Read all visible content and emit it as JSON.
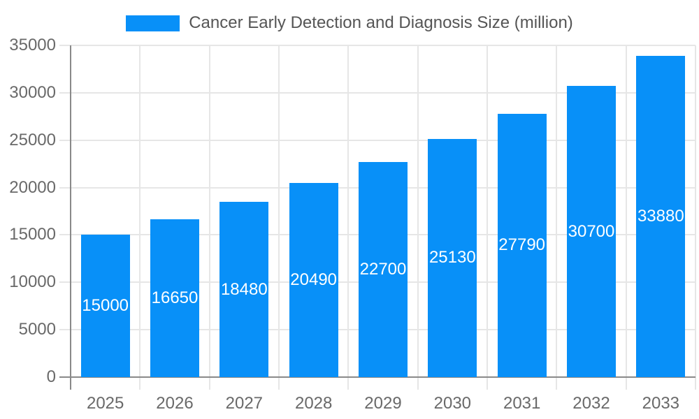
{
  "legend": {
    "label": "Cancer Early Detection and Diagnosis Size (million)"
  },
  "chart_data": {
    "type": "bar",
    "title": "Cancer Early Detection and Diagnosis Size (million)",
    "categories": [
      "2025",
      "2026",
      "2027",
      "2028",
      "2029",
      "2030",
      "2031",
      "2032",
      "2033"
    ],
    "values": [
      15000,
      16650,
      18480,
      20490,
      22700,
      25130,
      27790,
      30700,
      33880
    ],
    "xlabel": "",
    "ylabel": "",
    "ylim": [
      0,
      35000
    ],
    "ytick_step": 5000,
    "grid": true,
    "legend_position": "top-center",
    "colors": {
      "bar": "#0890F8",
      "grid": "#E6E6E6",
      "axis": "#898989",
      "axis_text": "#696969",
      "legend_text": "#555555",
      "value_label": "#FFFFFF",
      "background": "#FFFFFF"
    }
  }
}
